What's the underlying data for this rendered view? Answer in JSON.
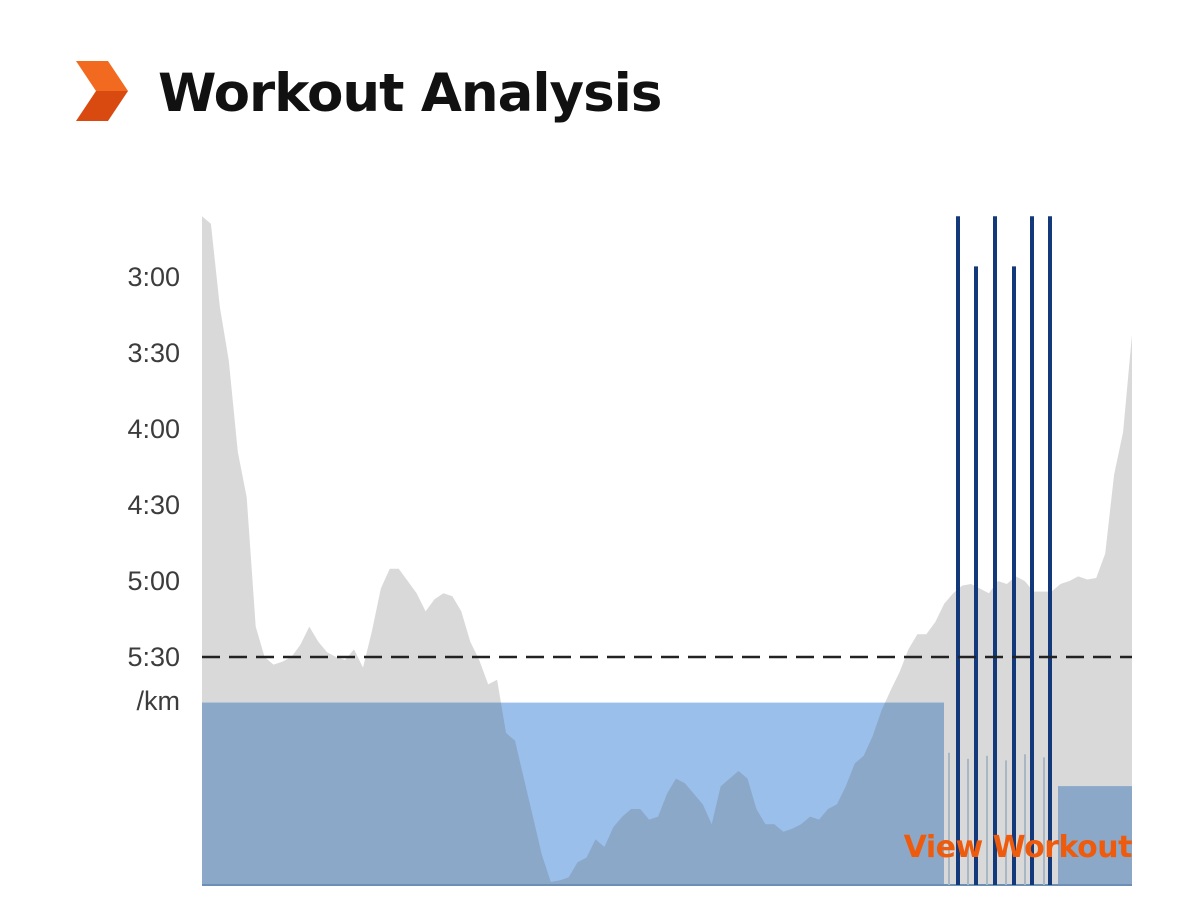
{
  "header": {
    "title": "Workout Analysis",
    "logo_icon": "orange-chevron-icon"
  },
  "colors": {
    "accent": "#ef5b0c",
    "pace_area": "#d9d9d9",
    "target_zone": "#99bfea",
    "overlap": "#8ba8c8",
    "interval_lines": "#13397a",
    "target_line": "#222222"
  },
  "chart_data": {
    "type": "area",
    "y_axis": {
      "tick_labels": [
        "3:00",
        "3:30",
        "4:00",
        "4:30",
        "5:00",
        "5:30"
      ],
      "unit": "/km",
      "inverted": true,
      "range_min_per_km": [
        2.6,
        6.0
      ]
    },
    "target_pace": "5:30",
    "pace_profile_min_per_km": [
      2.6,
      2.65,
      3.2,
      3.55,
      4.15,
      4.45,
      5.3,
      5.5,
      5.55,
      5.53,
      5.5,
      5.42,
      5.3,
      5.4,
      5.47,
      5.5,
      5.52,
      5.45,
      5.57,
      5.33,
      5.05,
      4.92,
      4.92,
      5.0,
      5.08,
      5.2,
      5.12,
      5.08,
      5.1,
      5.2,
      5.4,
      5.52,
      5.68,
      5.65,
      6.0,
      6.05,
      6.3,
      6.55,
      6.8,
      6.98,
      6.97,
      6.95,
      6.85,
      6.82,
      6.7,
      6.75,
      6.62,
      6.55,
      6.5,
      6.5,
      6.57,
      6.55,
      6.4,
      6.3,
      6.33,
      6.4,
      6.47,
      6.6,
      6.35,
      6.3,
      6.25,
      6.3,
      6.5,
      6.6,
      6.6,
      6.65,
      6.63,
      6.6,
      6.55,
      6.57,
      6.5,
      6.47,
      6.35,
      6.2,
      6.15,
      6.02,
      5.85,
      5.72,
      5.6,
      5.45,
      5.35,
      5.35,
      5.27,
      5.15,
      5.08,
      5.03,
      5.02,
      5.05,
      5.08,
      5.0,
      5.02,
      4.97,
      5.0,
      5.07,
      5.07,
      5.07,
      5.02,
      5.0,
      4.97,
      4.99,
      4.98,
      4.82,
      4.3,
      4.02,
      3.38
    ],
    "target_zone_height_min": 1.2,
    "lap_zone_height_min": 0.65,
    "interval_bar_heights_min": [
      [
        6.13,
        6.17,
        6.15,
        6.18,
        6.14,
        6.16
      ],
      [
        7.1,
        7.1,
        7.1,
        7.1,
        7.1,
        7.1,
        7.1
      ]
    ],
    "intervals": [
      {
        "peak_min_per_km": 2.6
      },
      {
        "peak_min_per_km": 2.93
      },
      {
        "peak_min_per_km": 2.6
      },
      {
        "peak_min_per_km": 2.93
      },
      {
        "peak_min_per_km": 2.6
      },
      {
        "peak_min_per_km": 2.6
      }
    ]
  },
  "footer": {
    "link_label": "View Workout"
  }
}
